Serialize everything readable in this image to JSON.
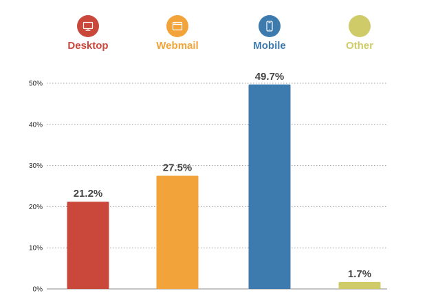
{
  "chart_data": {
    "type": "bar",
    "categories": [
      "Desktop",
      "Webmail",
      "Mobile",
      "Other"
    ],
    "values": [
      21.2,
      27.5,
      49.7,
      1.7
    ],
    "value_labels": [
      "21.2%",
      "27.5%",
      "49.7%",
      "1.7%"
    ],
    "colors": [
      "#c9473b",
      "#f2a43a",
      "#3d7aad",
      "#cfcb69"
    ],
    "legend_icons": [
      "desktop-monitor-icon",
      "webmail-browser-icon",
      "mobile-phone-icon",
      "none"
    ],
    "ylim": [
      0,
      50
    ],
    "yticks": [
      0,
      10,
      20,
      30,
      40,
      50
    ],
    "ytick_labels": [
      "0%",
      "10%",
      "20%",
      "30%",
      "40%",
      "50%"
    ],
    "grid": true,
    "title": "",
    "xlabel": "",
    "ylabel": "",
    "legend_position": "top"
  }
}
